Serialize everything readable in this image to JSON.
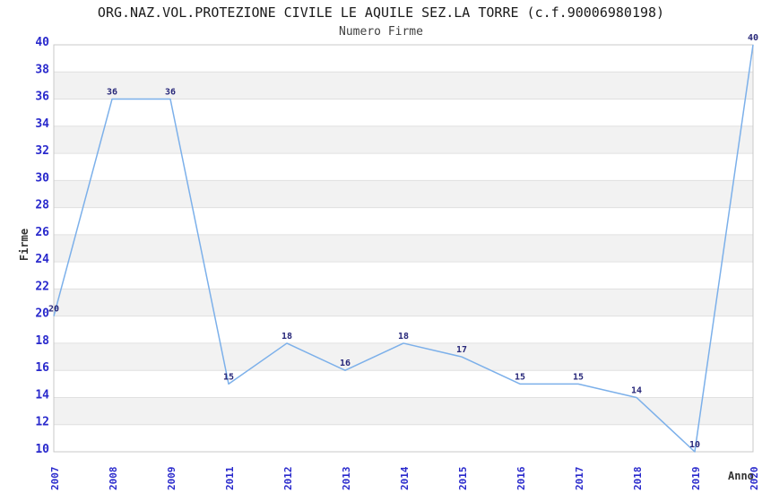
{
  "chart_data": {
    "type": "line",
    "title": "ORG.NAZ.VOL.PROTEZIONE CIVILE LE AQUILE SEZ.LA TORRE (c.f.90006980198)",
    "subtitle": "Numero Firme",
    "xlabel": "Anno",
    "ylabel": "Firme",
    "categories": [
      "2007",
      "2008",
      "2009",
      "2011",
      "2012",
      "2013",
      "2014",
      "2015",
      "2016",
      "2017",
      "2018",
      "2019",
      "2020"
    ],
    "values": [
      20,
      36,
      36,
      15,
      18,
      16,
      18,
      17,
      15,
      15,
      14,
      10,
      40
    ],
    "ylim": [
      10,
      40
    ],
    "ytick_step": 2,
    "yticks": [
      10,
      12,
      14,
      16,
      18,
      20,
      22,
      24,
      26,
      28,
      30,
      32,
      34,
      36,
      38,
      40
    ],
    "grid": "horizontal-bands",
    "legend": "none"
  },
  "colors": {
    "line": "#7cb0ea",
    "data_label": "#28287a",
    "tick_label": "#2929cc",
    "band_gray": "#f2f2f2",
    "band_white": "#ffffff",
    "gridline": "#e0e0e0",
    "plot_border": "#c9c9c9",
    "title": "#1a1a1a",
    "subtitle": "#404040",
    "axis_title": "#333333"
  }
}
